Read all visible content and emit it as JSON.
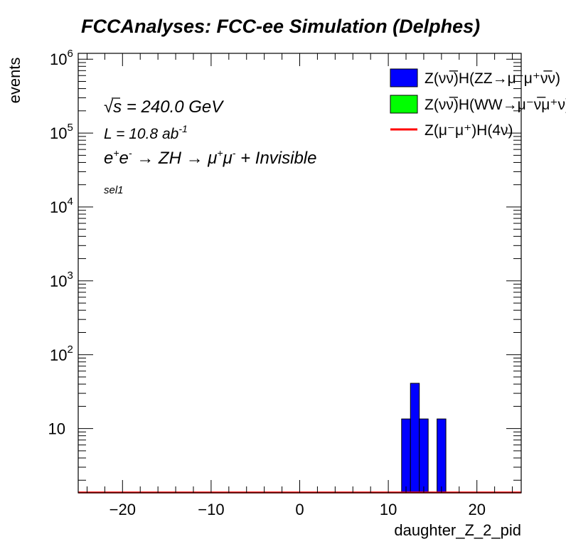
{
  "chart_data": {
    "type": "bar",
    "title": "FCCAnalyses: FCC-ee Simulation (Delphes)",
    "xlabel": "daughter_Z_2_pid",
    "ylabel": "events",
    "xlim": [
      -25,
      25
    ],
    "ylim": [
      1.35,
      1200000
    ],
    "yscale": "log",
    "x_ticks": [
      -20,
      -10,
      0,
      10,
      20
    ],
    "x_tick_labels": [
      "−20",
      "−10",
      "0",
      "10",
      "20"
    ],
    "y_ticks": [
      {
        "value": 10,
        "base": "10",
        "exp": ""
      },
      {
        "value": 100,
        "base": "10",
        "exp": "2"
      },
      {
        "value": 1000,
        "base": "10",
        "exp": "3"
      },
      {
        "value": 10000,
        "base": "10",
        "exp": "4"
      },
      {
        "value": 100000,
        "base": "10",
        "exp": "5"
      },
      {
        "value": 1000000,
        "base": "10",
        "exp": "6"
      }
    ],
    "bin_width": 1,
    "series": [
      {
        "name": "Z(νν̅)H(ZZ→μ⁻μ⁺ν̅ν)",
        "style": "fill",
        "color": "#0000ff",
        "bins": [
          {
            "low": 11.5,
            "high": 12.5,
            "value": 13.5
          },
          {
            "low": 12.5,
            "high": 13.5,
            "value": 41
          },
          {
            "low": 13.5,
            "high": 14.5,
            "value": 13.5
          },
          {
            "low": 15.5,
            "high": 16.5,
            "value": 13.5
          }
        ]
      },
      {
        "name": "Z(νν̅)H(WW→μ⁻ν̅μ⁺ν)",
        "style": "fill",
        "color": "#00ff00",
        "bins": []
      },
      {
        "name": "Z(μ⁻μ⁺)H(4ν)",
        "style": "line",
        "color": "#ff0000",
        "bins": []
      }
    ],
    "annotations": {
      "sqrt_s": {
        "symbol": "√",
        "var": "s",
        "rest": " = 240.0 GeV"
      },
      "lumi": {
        "base": "L = 10.8 ab",
        "exp": "-1"
      },
      "process": {
        "e1": "e",
        "e1_sup": "+",
        "e2": "e",
        "e2_sup": "-",
        "arrow1": " → ZH → ",
        "m1": "μ",
        "m1_sup": "+",
        "m2": "μ",
        "m2_sup": "-",
        "tail": " + Invisible"
      },
      "selection": "sel1"
    },
    "legend_position": "top-right",
    "colors": {
      "frame": "#000000",
      "background": "#ffffff"
    }
  }
}
